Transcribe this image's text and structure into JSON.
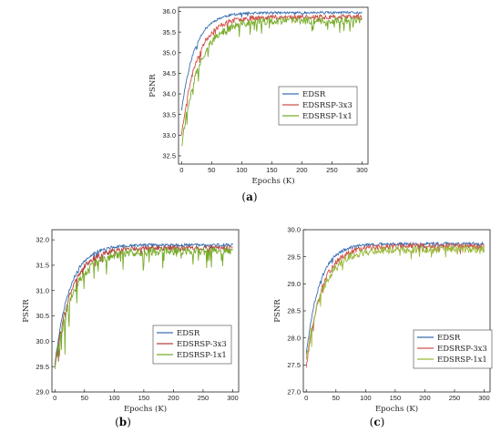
{
  "chart_data": [
    {
      "id": "a",
      "type": "line",
      "caption": "a",
      "xlabel": "Epochs (K)",
      "ylabel": "PSNR",
      "xlim": [
        -5,
        310
      ],
      "ylim": [
        32.3,
        36.1
      ],
      "xticks": [
        0,
        50,
        100,
        150,
        200,
        250,
        300
      ],
      "yticks": [
        "32.5",
        "33.0",
        "33.5",
        "34.0",
        "34.5",
        "35.0",
        "35.5",
        "36.0"
      ],
      "legend_position": "right",
      "series": [
        {
          "name": "EDSR",
          "color": "#3a6fb0",
          "start": 33.6,
          "final": 35.97,
          "rate": 0.045,
          "noise": 0.03,
          "dip": 0.08,
          "dip_rate": 0.06,
          "seed": 11
        },
        {
          "name": "EDSRSP-3x3",
          "color": "#d0504a",
          "start": 33.0,
          "final": 35.87,
          "rate": 0.04,
          "noise": 0.06,
          "dip": 0.12,
          "dip_rate": 0.07,
          "seed": 23
        },
        {
          "name": "EDSRSP-1x1",
          "color": "#78ac2a",
          "start": 32.75,
          "final": 35.78,
          "rate": 0.035,
          "noise": 0.09,
          "dip": 0.32,
          "dip_rate": 0.12,
          "seed": 37
        }
      ]
    },
    {
      "id": "b",
      "type": "line",
      "caption": "b",
      "xlabel": "Epochs (K)",
      "ylabel": "PSNR",
      "xlim": [
        -5,
        310
      ],
      "ylim": [
        29.0,
        32.2
      ],
      "xticks": [
        0,
        50,
        100,
        150,
        200,
        250,
        300
      ],
      "yticks": [
        "29.0",
        "29.5",
        "30.0",
        "30.5",
        "31.0",
        "31.5",
        "32.0"
      ],
      "legend_position": "bottom-right",
      "series": [
        {
          "name": "EDSR",
          "color": "#3a6fb0",
          "start": 29.55,
          "final": 31.9,
          "rate": 0.04,
          "noise": 0.03,
          "dip": 0.08,
          "dip_rate": 0.06,
          "seed": 5
        },
        {
          "name": "EDSRSP-3x3",
          "color": "#b5403c",
          "start": 29.5,
          "final": 31.84,
          "rate": 0.037,
          "noise": 0.05,
          "dip": 0.14,
          "dip_rate": 0.07,
          "seed": 17
        },
        {
          "name": "EDSRSP-1x1",
          "color": "#78ac2a",
          "start": 29.45,
          "final": 31.78,
          "rate": 0.033,
          "noise": 0.08,
          "dip": 0.35,
          "dip_rate": 0.11,
          "seed": 29
        }
      ]
    },
    {
      "id": "c",
      "type": "line",
      "caption": "c",
      "xlabel": "Epochs (K)",
      "ylabel": "PSNR",
      "xlim": [
        -5,
        310
      ],
      "ylim": [
        27.0,
        30.0
      ],
      "xticks": [
        0,
        50,
        100,
        150,
        200,
        250,
        300
      ],
      "yticks": [
        "27.0",
        "27.5",
        "28.0",
        "28.5",
        "29.0",
        "29.5",
        "30.0"
      ],
      "legend_position": "bottom-right",
      "series": [
        {
          "name": "EDSR",
          "color": "#3a6fb0",
          "start": 27.7,
          "final": 29.74,
          "rate": 0.045,
          "noise": 0.03,
          "dip": 0.06,
          "dip_rate": 0.06,
          "seed": 3
        },
        {
          "name": "EDSRSP-3x3",
          "color": "#d0504a",
          "start": 27.45,
          "final": 29.7,
          "rate": 0.04,
          "noise": 0.05,
          "dip": 0.1,
          "dip_rate": 0.07,
          "seed": 13
        },
        {
          "name": "EDSRSP-1x1",
          "color": "#9ab83a",
          "start": 27.6,
          "final": 29.64,
          "rate": 0.036,
          "noise": 0.07,
          "dip": 0.16,
          "dip_rate": 0.08,
          "seed": 41
        }
      ]
    }
  ]
}
